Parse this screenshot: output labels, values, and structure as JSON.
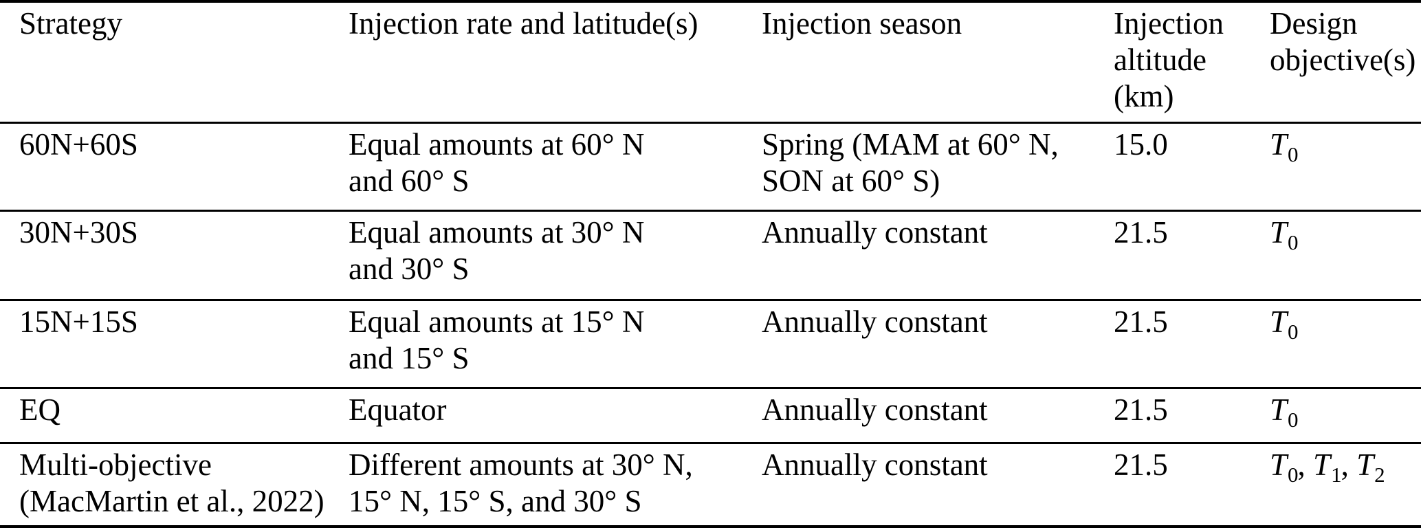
{
  "page": {
    "background": "#ffffff",
    "text_color": "#000000",
    "rule_color": "#000000"
  },
  "table": {
    "objectives_separator": ", ",
    "headers": [
      {
        "id": "strategy",
        "lines": [
          "Strategy"
        ]
      },
      {
        "id": "rate",
        "lines": [
          "Injection rate and latitude(s)"
        ]
      },
      {
        "id": "season",
        "lines": [
          "Injection season"
        ]
      },
      {
        "id": "altitude",
        "lines": [
          "Injection",
          "altitude",
          "(km)"
        ]
      },
      {
        "id": "objective",
        "lines": [
          "Design",
          "objective(s)"
        ]
      }
    ],
    "rows": [
      {
        "strategy": [
          "60N+60S"
        ],
        "rate": [
          "Equal amounts at 60° N",
          "and 60° S"
        ],
        "season": [
          "Spring (MAM at 60° N,",
          "SON at 60° S)"
        ],
        "altitude": "15.0",
        "objectives": [
          [
            "T",
            "0"
          ]
        ]
      },
      {
        "strategy": [
          "30N+30S"
        ],
        "rate": [
          "Equal amounts at 30° N",
          "and 30° S"
        ],
        "season": [
          "Annually constant"
        ],
        "altitude": "21.5",
        "objectives": [
          [
            "T",
            "0"
          ]
        ]
      },
      {
        "strategy": [
          "15N+15S"
        ],
        "rate": [
          "Equal amounts at 15° N",
          "and 15° S"
        ],
        "season": [
          "Annually constant"
        ],
        "altitude": "21.5",
        "objectives": [
          [
            "T",
            "0"
          ]
        ]
      },
      {
        "strategy": [
          "EQ"
        ],
        "rate": [
          "Equator"
        ],
        "season": [
          "Annually constant"
        ],
        "altitude": "21.5",
        "objectives": [
          [
            "T",
            "0"
          ]
        ]
      },
      {
        "strategy": [
          "Multi-objective",
          "(MacMartin et al., 2022)"
        ],
        "rate": [
          "Different amounts at 30° N,",
          "15° N, 15° S, and 30° S"
        ],
        "season": [
          "Annually constant"
        ],
        "altitude": "21.5",
        "objectives": [
          [
            "T",
            "0"
          ],
          [
            "T",
            "1"
          ],
          [
            "T",
            "2"
          ]
        ]
      }
    ]
  }
}
